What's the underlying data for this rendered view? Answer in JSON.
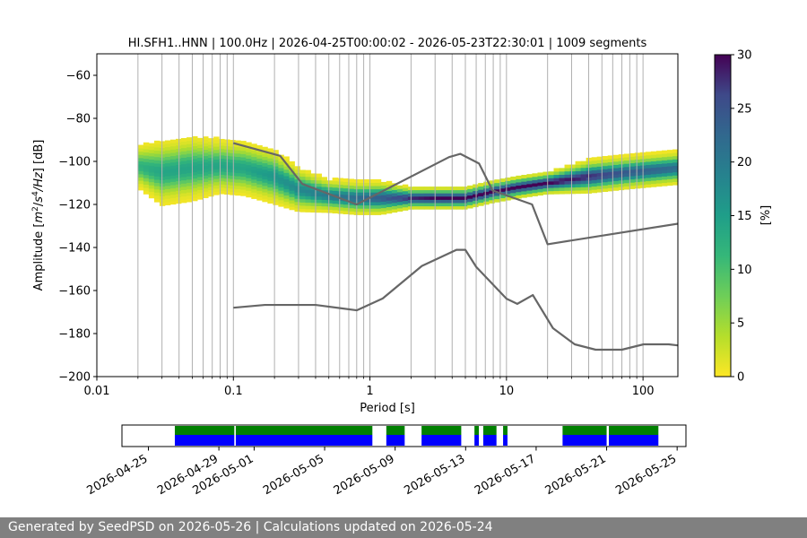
{
  "chart_data": [
    {
      "type": "heatmap",
      "title": "HI.SFH1..HNN | 100.0Hz | 2026-04-25T00:00:02 - 2026-05-23T22:30:01 | 1009 segments",
      "xlabel": "Period [s]",
      "ylabel_parts": {
        "prefix": "Amplitude [",
        "m": "m",
        "m_sup": "2",
        "slash1": "/",
        "s": "s",
        "s_sup": "4",
        "hz": "/Hz",
        "suffix": "] [dB]"
      },
      "x_scale": "log",
      "xlim": [
        0.01,
        180
      ],
      "ylim": [
        -200,
        -50
      ],
      "x_ticks": [
        0.01,
        0.1,
        1,
        10,
        100
      ],
      "x_tick_labels": [
        "0.01",
        "0.1",
        "1",
        "10",
        "100"
      ],
      "y_ticks": [
        -200,
        -180,
        -160,
        -140,
        -120,
        -100,
        -80,
        -60
      ],
      "y_tick_labels": [
        "−200",
        "−180",
        "−160",
        "−140",
        "−120",
        "−100",
        "−80",
        "−60"
      ],
      "grid": "vertical",
      "colorbar": {
        "label": "[%]",
        "min": 0,
        "max": 30,
        "ticks": [
          0,
          5,
          10,
          15,
          20,
          25,
          30
        ],
        "tick_labels": [
          "0",
          "5",
          "10",
          "15",
          "20",
          "25",
          "30"
        ],
        "colormap": "viridis_r"
      },
      "density_ridge": {
        "periods": [
          0.02,
          0.03,
          0.05,
          0.08,
          0.12,
          0.2,
          0.3,
          0.5,
          0.8,
          1.2,
          2,
          3,
          5,
          8,
          12,
          20,
          40,
          80,
          180
        ],
        "median_db": [
          -102,
          -105,
          -103,
          -102,
          -103,
          -107,
          -113,
          -116,
          -117,
          -117,
          -117,
          -117,
          -117,
          -114,
          -112,
          -110,
          -107,
          -105,
          -103
        ],
        "spread_db": [
          4,
          6,
          6,
          5,
          5,
          5,
          4,
          3,
          3,
          3,
          2,
          2,
          2,
          2,
          2,
          2,
          3,
          3,
          3
        ],
        "peak_percent": [
          12,
          14,
          14,
          14,
          14,
          16,
          18,
          20,
          22,
          24,
          28,
          30,
          30,
          30,
          30,
          30,
          28,
          24,
          22
        ]
      },
      "noise_models": [
        {
          "periods": [
            0.1,
            0.17,
            0.4,
            0.8,
            1.24,
            2.4,
            4.3,
            5,
            6,
            10,
            12,
            15.6,
            21.9,
            31.6,
            45,
            70,
            101,
            154,
            180
          ],
          "db": [
            -168,
            -166.7,
            -166.7,
            -169.2,
            -163.7,
            -148.6,
            -141.1,
            -141.1,
            -149,
            -163.8,
            -166.2,
            -162.1,
            -177.5,
            -185,
            -187.5,
            -187.5,
            -185,
            -185,
            -185.5
          ]
        },
        {
          "periods": [
            0.1,
            0.22,
            0.32,
            0.8,
            3.8,
            4.6,
            6.3,
            7.9,
            15.4,
            20,
            354
          ],
          "db": [
            -91.5,
            -97.4,
            -110.5,
            -120,
            -98,
            -96.5,
            -101,
            -113.5,
            -120,
            -138.5,
            -126
          ]
        }
      ]
    },
    {
      "type": "timeline",
      "x_ticks": [
        "2026-04-25",
        "2026-04-29",
        "2026-05-01",
        "2026-05-05",
        "2026-05-09",
        "2026-05-13",
        "2026-05-17",
        "2026-05-21",
        "2026-05-25"
      ],
      "segments": [
        {
          "start": "2026-04-26T12:00",
          "end": "2026-04-29T21:00"
        },
        {
          "start": "2026-04-29T23:00",
          "end": "2026-05-07T17:00"
        },
        {
          "start": "2026-05-08T12:00",
          "end": "2026-05-09T13:00"
        },
        {
          "start": "2026-05-10T12:00",
          "end": "2026-05-12T18:00"
        },
        {
          "start": "2026-05-13T12:00",
          "end": "2026-05-13T18:00"
        },
        {
          "start": "2026-05-14T00:00",
          "end": "2026-05-14T18:00"
        },
        {
          "start": "2026-05-15T03:00",
          "end": "2026-05-15T09:00"
        },
        {
          "start": "2026-05-18T12:00",
          "end": "2026-05-21T00:00"
        },
        {
          "start": "2026-05-21T03:00",
          "end": "2026-05-23T22:30"
        }
      ]
    }
  ],
  "colors": {
    "model_line": "#666666",
    "grid": "#b0b0b0",
    "timeline_top": "#008000",
    "timeline_bottom": "#0000ff"
  },
  "footer": {
    "text": "Generated by SeedPSD on 2026-05-26 | Calculations updated on 2026-05-24"
  }
}
